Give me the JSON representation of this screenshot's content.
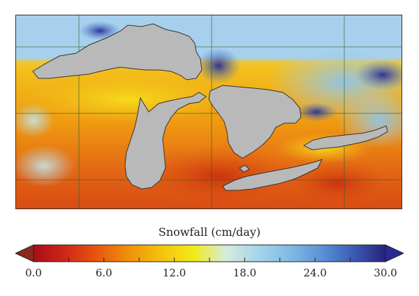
{
  "colorbar": {
    "title": "Snowfall (cm/day)",
    "min": 0.0,
    "max": 30.0,
    "ticks": [
      "0.0",
      "6.0",
      "12.0",
      "18.0",
      "24.0",
      "30.0"
    ],
    "under_color": "#8b2a1a",
    "over_color": "#2b2a8f",
    "gradient_stops": [
      "#a80d1a",
      "#d12815",
      "#e8570f",
      "#f0920c",
      "#f5c20d",
      "#f2ea17",
      "#d6ecd9",
      "#a8d5ea",
      "#7fbbe6",
      "#5b93d4",
      "#3b5bb5",
      "#26237a"
    ]
  },
  "map": {
    "land_color": "#b9b9b9",
    "lake_outline_color": "#333333",
    "gridline_color": "#2d5d2d"
  }
}
